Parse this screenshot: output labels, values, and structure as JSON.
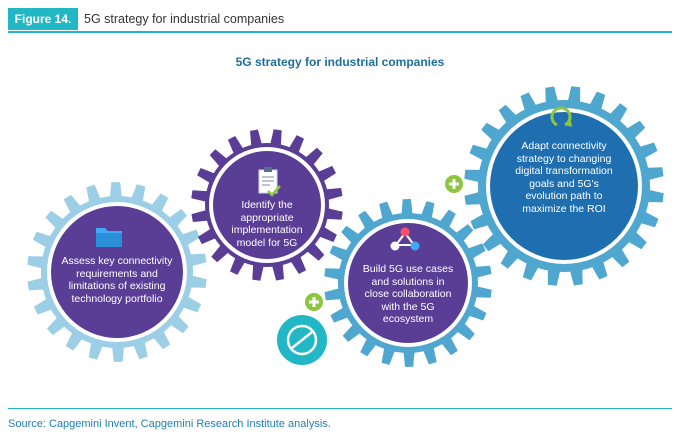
{
  "header": {
    "figure_label": "Figure 14.",
    "title": "5G strategy for industrial companies"
  },
  "main_title": "5G strategy for industrial companies",
  "gears": [
    {
      "id": "assess",
      "icon": "folder-icon",
      "text": "Assess key connectivity requirements and limitations of existing technology portfolio"
    },
    {
      "id": "identify",
      "icon": "clipboard-check-icon",
      "text": "Identify the appropriate implementation model for 5G"
    },
    {
      "id": "build",
      "icon": "network-nodes-icon",
      "text": "Build 5G use cases and solutions in close collaboration with the 5G ecosystem"
    },
    {
      "id": "adapt",
      "icon": "refresh-cycle-icon",
      "text": "Adapt connectivity strategy to changing digital transformation goals and 5G's evolution path to maximize the ROI"
    }
  ],
  "colors": {
    "teal": "#22b7c5",
    "dark_purple": "#5a3e96",
    "light_blue": "#9ccfe6",
    "medium_blue": "#4fa6cf",
    "green": "#8cc63f",
    "title_blue": "#1e6f9a"
  },
  "source": "Source: Capgemini Invent, Capgemini Research Institute analysis."
}
